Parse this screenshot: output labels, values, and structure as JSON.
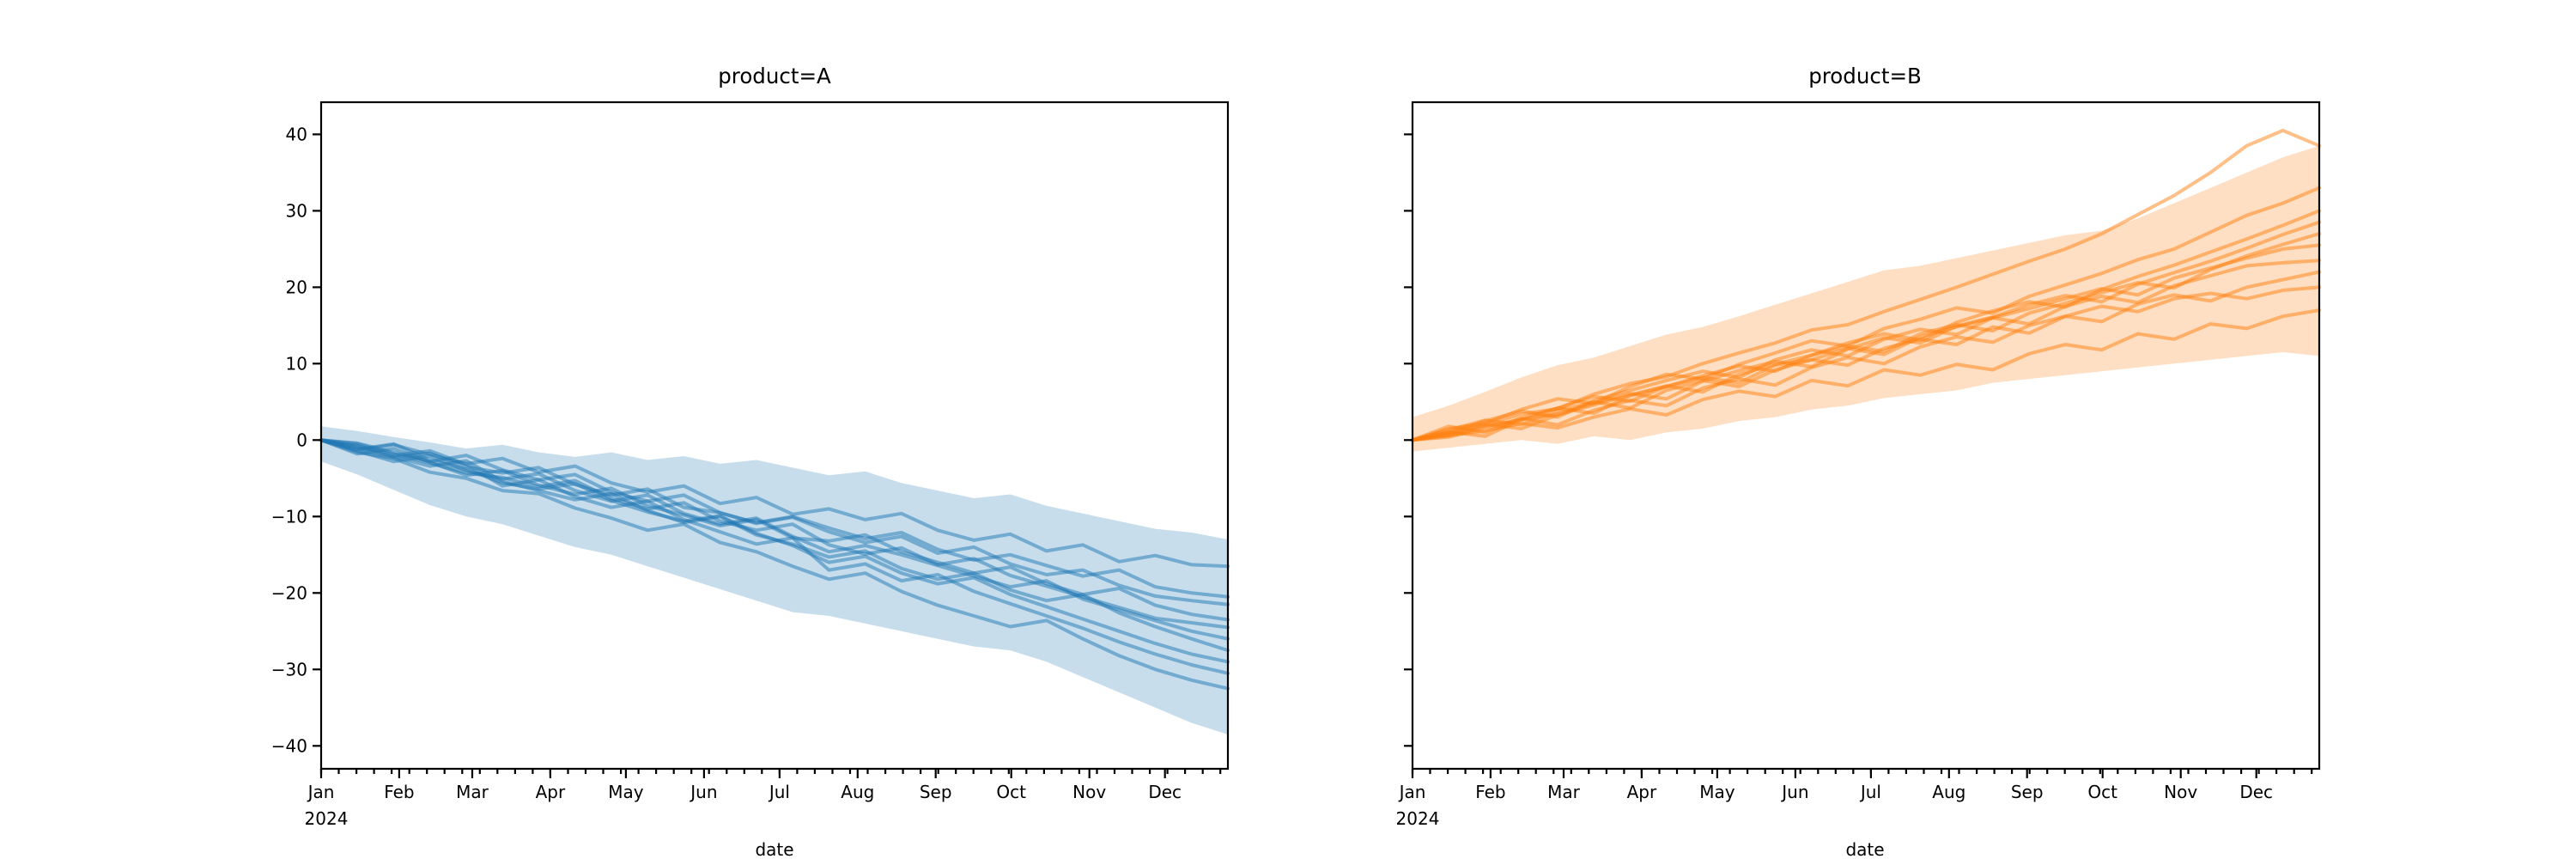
{
  "figure": {
    "background": "#ffffff",
    "spine_color": "#000000",
    "tick_color": "#000000"
  },
  "chart_data": [
    {
      "type": "line",
      "title": "product=A",
      "xlabel": "date",
      "color": "#1f77b4",
      "line_opacity": 0.5,
      "band_opacity": 0.25,
      "xlim": [
        0,
        360
      ],
      "ylim": [
        -43,
        44.2
      ],
      "x_tick_labels": [
        "Jan",
        "Feb",
        "Mar",
        "Apr",
        "May",
        "Jun",
        "Jul",
        "Aug",
        "Sep",
        "Oct",
        "Nov",
        "Dec"
      ],
      "x_tick_days": [
        0,
        31,
        60,
        91,
        121,
        152,
        182,
        213,
        244,
        274,
        305,
        335
      ],
      "x_minor_tick_interval_days": 7,
      "x_year_label": "2024",
      "y_ticks": [
        -40,
        -30,
        -20,
        -10,
        0,
        10,
        20,
        30,
        40
      ],
      "y_tick_labels": [
        "−40",
        "−30",
        "−20",
        "−10",
        "0",
        "10",
        "20",
        "30",
        "40"
      ],
      "show_y_tick_labels": true,
      "x_days": [
        0,
        14.4,
        28.8,
        43.2,
        57.6,
        72,
        86.4,
        100.8,
        115.2,
        129.6,
        144,
        158.4,
        172.8,
        187.2,
        201.6,
        216,
        230.4,
        244.8,
        259.2,
        273.6,
        288,
        302.4,
        316.8,
        331.2,
        345.6,
        360
      ],
      "band": {
        "hi": [
          1.8,
          1.2,
          0.4,
          -0.3,
          -1.1,
          -0.6,
          -1.6,
          -2.2,
          -1.6,
          -2.6,
          -2.1,
          -3.1,
          -2.6,
          -3.6,
          -4.6,
          -4.1,
          -5.6,
          -6.6,
          -7.6,
          -7.1,
          -8.6,
          -9.6,
          -10.6,
          -11.6,
          -12.1,
          -13.0
        ],
        "lo": [
          -2.8,
          -4.5,
          -6.5,
          -8.5,
          -10.0,
          -11.0,
          -12.5,
          -14.0,
          -15.0,
          -16.5,
          -18.0,
          -19.5,
          -21.0,
          -22.5,
          -23.0,
          -24.0,
          -25.0,
          -26.0,
          -27.0,
          -27.5,
          -29.0,
          -31.0,
          -33.0,
          -35.0,
          -37.0,
          -38.5
        ]
      },
      "series": [
        [
          0,
          -1.6,
          -2.4,
          -4.2,
          -5.0,
          -6.6,
          -7.0,
          -8.9,
          -10.2,
          -11.8,
          -11.0,
          -13.4,
          -14.6,
          -16.5,
          -18.2,
          -17.4,
          -19.8,
          -21.6,
          -23.0,
          -24.4,
          -23.6,
          -26.0,
          -28.2,
          -30.0,
          -31.4,
          -32.5
        ],
        [
          0,
          -0.7,
          -2.0,
          -1.4,
          -3.2,
          -6.0,
          -5.2,
          -7.4,
          -8.8,
          -8.0,
          -10.4,
          -12.0,
          -13.6,
          -12.8,
          -17.0,
          -16.2,
          -18.4,
          -17.6,
          -19.8,
          -21.4,
          -23.0,
          -24.6,
          -26.4,
          -28.0,
          -29.4,
          -30.5
        ],
        [
          0,
          -1.2,
          -0.5,
          -2.6,
          -3.8,
          -5.6,
          -6.4,
          -5.7,
          -7.9,
          -9.4,
          -10.6,
          -9.9,
          -12.2,
          -13.8,
          -16.0,
          -15.2,
          -17.4,
          -18.8,
          -18.0,
          -20.2,
          -21.8,
          -23.4,
          -25.0,
          -26.6,
          -28.0,
          -29.0
        ],
        [
          0,
          -0.9,
          -2.2,
          -3.4,
          -2.7,
          -5.4,
          -6.6,
          -7.8,
          -7.0,
          -9.2,
          -10.8,
          -10.0,
          -12.4,
          -13.6,
          -15.3,
          -14.5,
          -16.8,
          -18.2,
          -17.4,
          -19.6,
          -21.0,
          -20.2,
          -22.6,
          -24.4,
          -26.0,
          -27.5
        ],
        [
          0,
          -1.4,
          -2.8,
          -2.1,
          -4.0,
          -5.1,
          -4.4,
          -6.6,
          -8.0,
          -7.2,
          -9.6,
          -11.0,
          -10.2,
          -12.6,
          -14.6,
          -13.8,
          -15.0,
          -16.4,
          -17.8,
          -19.2,
          -18.4,
          -20.8,
          -22.2,
          -23.6,
          -25.0,
          -26.0
        ],
        [
          0,
          -0.5,
          -1.8,
          -3.0,
          -4.3,
          -4.9,
          -6.1,
          -5.3,
          -7.6,
          -9.0,
          -8.2,
          -10.6,
          -11.8,
          -11.0,
          -13.7,
          -14.9,
          -14.1,
          -16.3,
          -15.5,
          -17.7,
          -19.1,
          -20.5,
          -21.9,
          -23.3,
          -23.9,
          -24.5
        ],
        [
          0,
          -1.8,
          -1.1,
          -2.9,
          -4.6,
          -4.0,
          -5.9,
          -7.1,
          -6.3,
          -8.6,
          -9.8,
          -11.2,
          -10.4,
          -12.8,
          -13.2,
          -12.4,
          -14.6,
          -16.0,
          -17.4,
          -16.6,
          -18.8,
          -20.2,
          -19.4,
          -21.6,
          -22.8,
          -23.5
        ],
        [
          0,
          -1.0,
          -2.3,
          -1.7,
          -3.5,
          -4.3,
          -3.6,
          -5.8,
          -7.2,
          -6.4,
          -8.8,
          -9.5,
          -10.9,
          -10.1,
          -12.0,
          -13.4,
          -12.6,
          -14.8,
          -14.0,
          -16.2,
          -17.6,
          -17.0,
          -19.0,
          -20.4,
          -21.0,
          -21.5
        ],
        [
          0,
          -0.4,
          -1.6,
          -2.8,
          -2.0,
          -3.9,
          -5.2,
          -4.5,
          -6.8,
          -8.0,
          -7.2,
          -9.5,
          -10.8,
          -10.0,
          -11.5,
          -12.9,
          -12.1,
          -14.3,
          -15.7,
          -15.0,
          -16.4,
          -17.8,
          -17.0,
          -19.2,
          -20.0,
          -20.5
        ],
        [
          0,
          -1.3,
          -0.6,
          -1.9,
          -3.1,
          -2.4,
          -4.2,
          -3.4,
          -5.6,
          -6.8,
          -6.0,
          -8.3,
          -7.5,
          -9.7,
          -9.0,
          -10.4,
          -9.6,
          -11.8,
          -13.1,
          -12.3,
          -14.5,
          -13.7,
          -15.9,
          -15.1,
          -16.3,
          -16.5
        ]
      ]
    },
    {
      "type": "line",
      "title": "product=B",
      "xlabel": "date",
      "color": "#ff7f0e",
      "line_opacity": 0.5,
      "band_opacity": 0.25,
      "xlim": [
        0,
        360
      ],
      "ylim": [
        -43,
        44.2
      ],
      "x_tick_labels": [
        "Jan",
        "Feb",
        "Mar",
        "Apr",
        "May",
        "Jun",
        "Jul",
        "Aug",
        "Sep",
        "Oct",
        "Nov",
        "Dec"
      ],
      "x_tick_days": [
        0,
        31,
        60,
        91,
        121,
        152,
        182,
        213,
        244,
        274,
        305,
        335
      ],
      "x_minor_tick_interval_days": 7,
      "x_year_label": "2024",
      "y_ticks": [
        -40,
        -30,
        -20,
        -10,
        0,
        10,
        20,
        30,
        40
      ],
      "y_tick_labels": [
        "−40",
        "−30",
        "−20",
        "−10",
        "0",
        "10",
        "20",
        "30",
        "40"
      ],
      "show_y_tick_labels": false,
      "x_days": [
        0,
        14.4,
        28.8,
        43.2,
        57.6,
        72,
        86.4,
        100.8,
        115.2,
        129.6,
        144,
        158.4,
        172.8,
        187.2,
        201.6,
        216,
        230.4,
        244.8,
        259.2,
        273.6,
        288,
        302.4,
        316.8,
        331.2,
        345.6,
        360
      ],
      "band": {
        "hi": [
          3.0,
          4.5,
          6.3,
          8.2,
          9.8,
          10.8,
          12.3,
          13.8,
          14.8,
          16.2,
          17.7,
          19.2,
          20.7,
          22.2,
          22.8,
          23.8,
          24.8,
          25.8,
          26.8,
          27.4,
          29.0,
          31.0,
          33.0,
          35.0,
          37.0,
          38.5
        ],
        "lo": [
          -1.5,
          -1.0,
          -0.5,
          0.0,
          -0.5,
          0.5,
          0.0,
          1.0,
          1.5,
          2.5,
          3.0,
          4.0,
          4.5,
          5.5,
          6.0,
          6.5,
          7.5,
          8.0,
          8.5,
          9.0,
          9.5,
          10.0,
          10.5,
          11.0,
          11.5,
          11.0
        ]
      },
      "series": [
        [
          0,
          0.9,
          2.0,
          3.4,
          4.1,
          6.0,
          7.4,
          8.3,
          10.0,
          11.4,
          12.7,
          14.4,
          15.1,
          16.8,
          18.4,
          20.0,
          21.7,
          23.4,
          25.0,
          27.0,
          29.5,
          32.0,
          35.0,
          38.5,
          40.5,
          38.5
        ],
        [
          0,
          1.5,
          2.2,
          4.0,
          5.4,
          4.8,
          7.0,
          8.6,
          8.0,
          9.9,
          11.4,
          13.0,
          12.3,
          14.6,
          15.8,
          17.3,
          16.6,
          18.8,
          20.3,
          21.8,
          23.6,
          25.0,
          27.2,
          29.4,
          31.0,
          33.0
        ],
        [
          0,
          0.6,
          1.8,
          2.6,
          4.2,
          5.7,
          5.1,
          7.0,
          8.4,
          9.7,
          9.0,
          11.1,
          12.7,
          13.9,
          13.1,
          15.4,
          16.9,
          18.1,
          17.4,
          19.7,
          21.4,
          22.9,
          24.6,
          26.3,
          28.1,
          30.0
        ],
        [
          0,
          1.1,
          0.5,
          2.7,
          3.4,
          4.8,
          6.1,
          5.4,
          7.7,
          9.1,
          10.3,
          9.6,
          11.9,
          13.4,
          12.7,
          14.9,
          16.1,
          17.7,
          18.9,
          18.1,
          20.4,
          21.9,
          23.4,
          25.1,
          26.9,
          28.5
        ],
        [
          0,
          0.8,
          2.1,
          1.5,
          3.3,
          4.6,
          5.9,
          7.1,
          6.3,
          8.6,
          9.9,
          11.1,
          12.3,
          11.6,
          13.9,
          15.1,
          14.3,
          16.6,
          17.9,
          19.3,
          20.6,
          19.9,
          22.3,
          24.1,
          25.6,
          27.0
        ],
        [
          0,
          1.0,
          2.5,
          3.8,
          3.0,
          5.2,
          6.5,
          7.8,
          9.0,
          8.2,
          10.5,
          11.8,
          11.0,
          13.2,
          14.5,
          13.8,
          16.0,
          17.2,
          18.5,
          19.8,
          19.0,
          21.2,
          22.5,
          23.8,
          25.0,
          25.5
        ],
        [
          0,
          1.8,
          1.0,
          2.9,
          4.2,
          3.5,
          5.8,
          7.0,
          8.2,
          7.5,
          9.8,
          10.5,
          12.0,
          11.2,
          13.5,
          14.8,
          16.0,
          15.2,
          17.5,
          18.8,
          18.0,
          20.2,
          21.5,
          22.8,
          23.2,
          23.5
        ],
        [
          0,
          0.4,
          1.6,
          2.8,
          2.0,
          3.9,
          5.2,
          4.5,
          6.8,
          8.0,
          7.2,
          9.5,
          10.8,
          10.0,
          12.2,
          13.5,
          12.8,
          15.0,
          16.2,
          15.5,
          17.8,
          19.0,
          18.2,
          20.0,
          21.0,
          22.0
        ],
        [
          0,
          1.3,
          2.6,
          2.0,
          3.8,
          5.0,
          4.2,
          6.5,
          7.8,
          7.0,
          9.2,
          10.5,
          9.8,
          12.0,
          13.2,
          12.5,
          14.8,
          14.0,
          16.2,
          17.5,
          16.8,
          18.5,
          19.2,
          18.5,
          19.6,
          20.0
        ],
        [
          0,
          0.6,
          1.2,
          2.2,
          1.6,
          3.0,
          4.1,
          3.3,
          5.3,
          6.4,
          5.7,
          7.8,
          7.1,
          9.2,
          8.5,
          9.9,
          9.2,
          11.3,
          12.5,
          11.8,
          13.9,
          13.2,
          15.2,
          14.6,
          16.2,
          17.0
        ]
      ]
    }
  ]
}
